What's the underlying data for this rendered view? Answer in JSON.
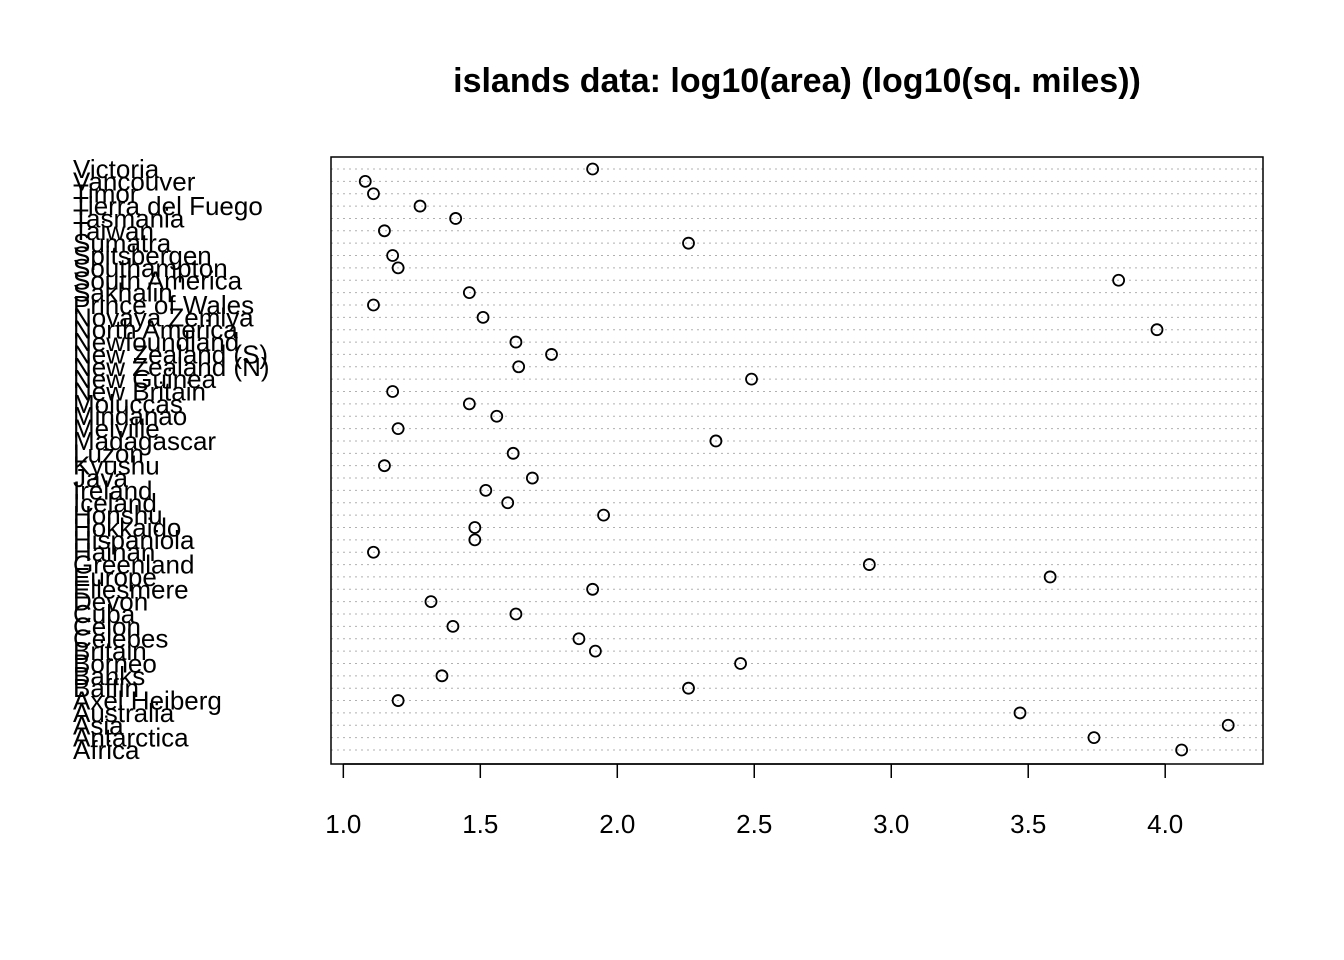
{
  "chart_data": {
    "type": "scatter",
    "title": "islands data: log10(area) (log10(sq. miles))",
    "xlabel": "",
    "ylabel": "",
    "xlim": [
      0.955,
      4.357
    ],
    "grid": true,
    "x_ticks": [
      "1.0",
      "1.5",
      "2.0",
      "2.5",
      "3.0",
      "3.5",
      "4.0"
    ],
    "x_tick_values": [
      1.0,
      1.5,
      2.0,
      2.5,
      3.0,
      3.5,
      4.0
    ],
    "categories": [
      "Africa",
      "Antarctica",
      "Asia",
      "Australia",
      "Axel Heiberg",
      "Baffin",
      "Banks",
      "Borneo",
      "Britain",
      "Celebes",
      "Celon",
      "Cuba",
      "Devon",
      "Ellesmere",
      "Europe",
      "Greenland",
      "Hainan",
      "Hispaniola",
      "Hokkaido",
      "Honshu",
      "Iceland",
      "Ireland",
      "Java",
      "Kyushu",
      "Luzon",
      "Madagascar",
      "Melville",
      "Mindanao",
      "Moluccas",
      "New Britain",
      "New Guinea",
      "New Zealand (N)",
      "New Zealand (S)",
      "Newfoundland",
      "North America",
      "Novaya Zemlya",
      "Prince of Wales",
      "Sakhalin",
      "South America",
      "Southampton",
      "Spitsbergen",
      "Sumatra",
      "Taiwan",
      "Tasmania",
      "Tierra del Fuego",
      "Timor",
      "Vancouver",
      "Victoria"
    ],
    "values": [
      4.06,
      3.74,
      4.23,
      3.47,
      1.2,
      2.26,
      1.36,
      2.45,
      1.92,
      1.86,
      1.4,
      1.63,
      1.32,
      1.91,
      3.58,
      2.92,
      1.11,
      1.48,
      1.48,
      1.95,
      1.6,
      1.52,
      1.69,
      1.15,
      1.62,
      2.36,
      1.2,
      1.56,
      1.46,
      1.18,
      2.49,
      1.64,
      1.76,
      1.63,
      3.97,
      1.51,
      1.11,
      1.46,
      3.83,
      1.2,
      1.18,
      2.26,
      1.15,
      1.41,
      1.28,
      1.11,
      1.08,
      1.91
    ]
  }
}
